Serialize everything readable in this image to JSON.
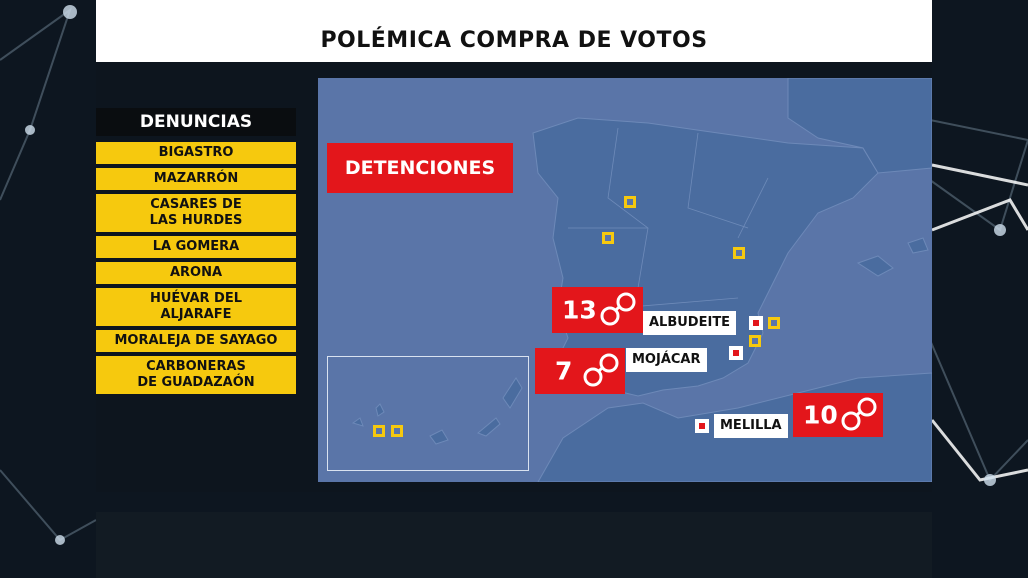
{
  "header": {
    "title": "POLÉMICA COMPRA DE VOTOS"
  },
  "denuncias": {
    "title": "DENUNCIAS",
    "items": [
      "BIGASTRO",
      "MAZARRÓN",
      "CASARES DE\nLAS HURDES",
      "LA GOMERA",
      "ARONA",
      "HUÉVAR DEL\nALJARAFE",
      "MORALEJA DE SAYAGO",
      "CARBONERAS\nDE GUADAZAÓN"
    ]
  },
  "map": {
    "label": "DETENCIONES",
    "detentions": [
      {
        "count": "13",
        "place": "ALBUDEITE",
        "icon": "handcuffs-icon"
      },
      {
        "count": "7",
        "place": "MOJÁCAR",
        "icon": "handcuffs-icon"
      },
      {
        "count": "10",
        "place": "MELILLA",
        "icon": "handcuffs-icon"
      }
    ]
  },
  "colors": {
    "accent_red": "#e3161b",
    "accent_yellow": "#f6c90e",
    "sea": "#5a75a8",
    "land": "#4a6498"
  }
}
